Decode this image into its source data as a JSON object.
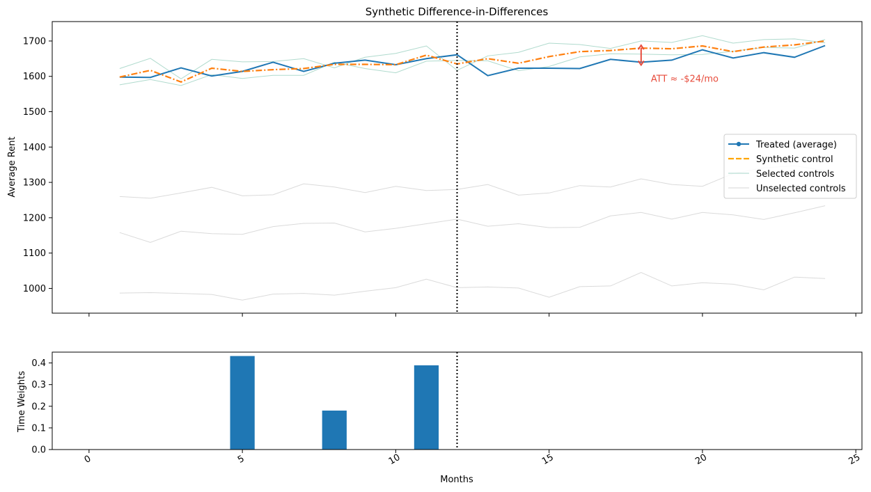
{
  "chart_data": [
    {
      "type": "line",
      "title": "Synthetic Difference-in-Differences",
      "xlabel": "",
      "ylabel": "Average Rent",
      "xlim": [
        -1.2,
        25.2
      ],
      "ylim": [
        930,
        1755
      ],
      "xticks": [
        0,
        5,
        10,
        15,
        20,
        25
      ],
      "yticks": [
        1000,
        1100,
        1200,
        1300,
        1400,
        1500,
        1600,
        1700
      ],
      "grid": false,
      "legend_position": "center-right",
      "treatment_start": 12,
      "annotation": {
        "text": "ATT ≈ -$24/mo",
        "x": 18,
        "y_from": 1688,
        "y_to": 1632,
        "color": "#e74c3c"
      },
      "x": [
        1,
        2,
        3,
        4,
        5,
        6,
        7,
        8,
        9,
        10,
        11,
        12,
        13,
        14,
        15,
        16,
        17,
        18,
        19,
        20,
        21,
        22,
        23,
        24
      ],
      "series": [
        {
          "name": "Treated (average)",
          "role": "treated",
          "color": "#1f77b4",
          "values": [
            1598,
            1597,
            1624,
            1601,
            1614,
            1640,
            1614,
            1637,
            1646,
            1633,
            1650,
            1661,
            1602,
            1623,
            1623,
            1622,
            1648,
            1640,
            1646,
            1675,
            1652,
            1667,
            1654,
            1687
          ]
        },
        {
          "name": "Synthetic control",
          "role": "synthetic",
          "color": "#ff7f0e",
          "values": [
            1598,
            1617,
            1584,
            1623,
            1614,
            1619,
            1622,
            1634,
            1634,
            1633,
            1660,
            1635,
            1650,
            1637,
            1656,
            1670,
            1673,
            1680,
            1678,
            1686,
            1670,
            1683,
            1689,
            1700
          ]
        },
        {
          "name": "Selected controls",
          "role": "selected",
          "color": "#a6d6c8",
          "values": [
            1622,
            1651,
            1593,
            1648,
            1641,
            1642,
            1650,
            1624,
            1654,
            1665,
            1686,
            1617,
            1658,
            1668,
            1694,
            1690,
            1679,
            1700,
            1696,
            1715,
            1694,
            1704,
            1706,
            1695
          ]
        },
        {
          "name": "",
          "role": "selected",
          "color": "#a6d6c8",
          "values": [
            1576,
            1591,
            1574,
            1605,
            1594,
            1603,
            1603,
            1640,
            1622,
            1610,
            1643,
            1645,
            1644,
            1616,
            1628,
            1655,
            1664,
            1663,
            1661,
            1662,
            1671,
            1682,
            1680,
            1704
          ]
        },
        {
          "name": "Unselected controls",
          "role": "unselected",
          "color": "#d4d4d4",
          "values": [
            1260,
            1255,
            1270,
            1286,
            1262,
            1265,
            1296,
            1287,
            1271,
            1289,
            1277,
            1280,
            1294,
            1264,
            1270,
            1291,
            1287,
            1310,
            1294,
            1289,
            1325,
            1341,
            1347,
            1333
          ]
        },
        {
          "name": "",
          "role": "unselected",
          "color": "#d4d4d4",
          "values": [
            1158,
            1130,
            1162,
            1155,
            1153,
            1175,
            1184,
            1185,
            1160,
            1170,
            1183,
            1196,
            1176,
            1183,
            1172,
            1173,
            1205,
            1215,
            1196,
            1215,
            1208,
            1195,
            1214,
            1234
          ]
        },
        {
          "name": "",
          "role": "unselected",
          "color": "#d4d4d4",
          "values": [
            987,
            988,
            986,
            983,
            967,
            984,
            986,
            981,
            992,
            1002,
            1026,
            1002,
            1004,
            1001,
            975,
            1005,
            1007,
            1045,
            1007,
            1016,
            1012,
            996,
            1032,
            1028
          ]
        }
      ]
    },
    {
      "type": "bar",
      "title": "",
      "xlabel": "Months",
      "ylabel": "Time Weights",
      "xlim": [
        -1.2,
        25.2
      ],
      "ylim": [
        0,
        0.45
      ],
      "xticks": [
        0,
        5,
        10,
        15,
        20,
        25
      ],
      "yticks": [
        "0.0",
        "0.1",
        "0.2",
        "0.3",
        "0.4"
      ],
      "grid": false,
      "treatment_start": 12,
      "bar_color": "#1f77b4",
      "x": [
        5,
        8,
        11
      ],
      "values": [
        0.432,
        0.18,
        0.389
      ]
    }
  ]
}
